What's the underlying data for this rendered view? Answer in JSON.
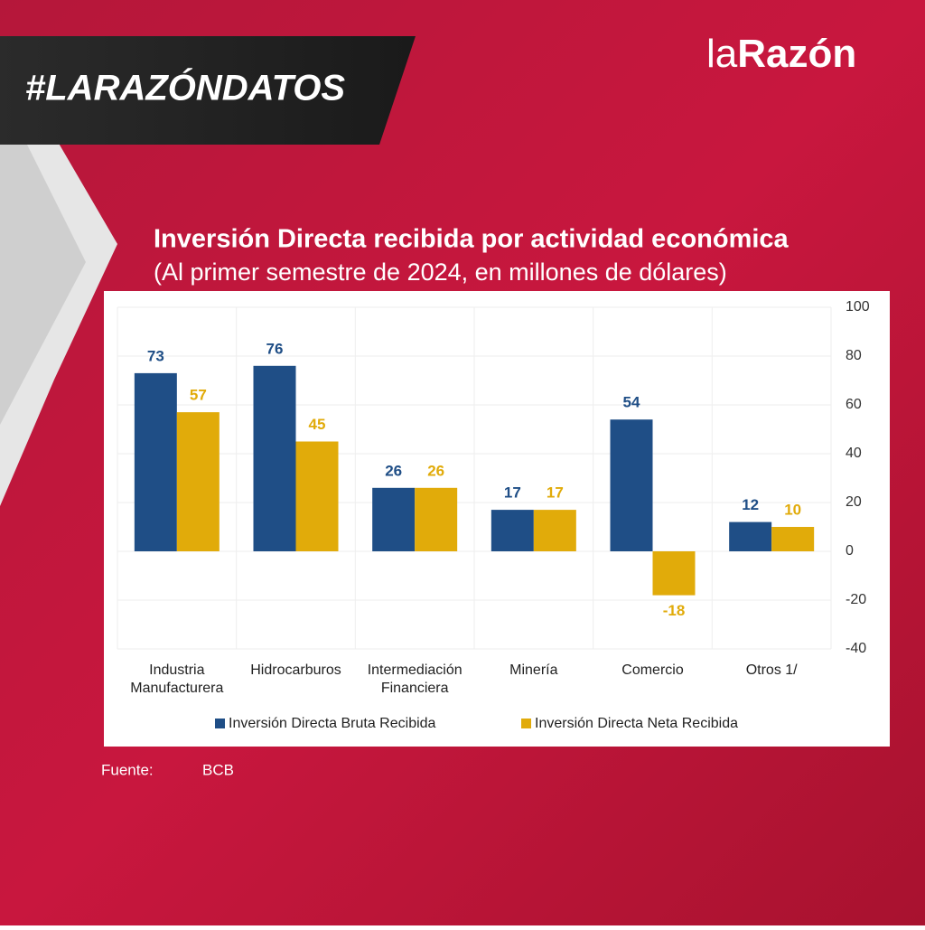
{
  "header": {
    "hashtag": "#LARAZÓNDATOS",
    "brand_light": "la",
    "brand_bold": "Razón"
  },
  "chart_data": {
    "type": "bar",
    "title": "Inversión Directa recibida por actividad económica",
    "subtitle": "(Al primer semestre de 2024, en millones de dólares)",
    "categories": [
      "Industria\nManufacturera",
      "Hidrocarburos",
      "Intermediación\nFinanciera",
      "Minería",
      "Comercio",
      "Otros 1/"
    ],
    "series": [
      {
        "name": "Inversión Directa Bruta Recibida",
        "color": "#1f4e86",
        "values": [
          73,
          76,
          26,
          17,
          54,
          12
        ]
      },
      {
        "name": "Inversión Directa Neta Recibida",
        "color": "#e1ab0a",
        "values": [
          57,
          45,
          26,
          17,
          -18,
          10
        ]
      }
    ],
    "ylim": [
      -40,
      100
    ],
    "yticks": [
      -40,
      -20,
      0,
      20,
      40,
      60,
      80,
      100
    ],
    "grid": true,
    "legend": "bottom"
  },
  "source": {
    "label": "Fuente:",
    "value": "BCB"
  }
}
